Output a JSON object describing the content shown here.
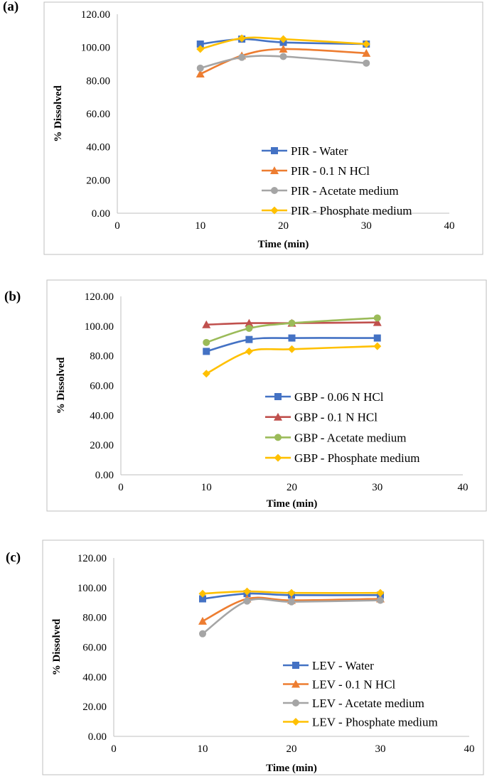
{
  "chart_data": [
    {
      "panel_label": "(a)",
      "type": "line",
      "smooth": true,
      "title": "",
      "xlabel": "Time (min)",
      "ylabel": "% Dissolved",
      "xlim": [
        0,
        40
      ],
      "ylim": [
        0,
        120
      ],
      "x_ticks": [
        "0",
        "10",
        "20",
        "30",
        "40"
      ],
      "y_ticks": [
        "0.00",
        "20.00",
        "40.00",
        "60.00",
        "80.00",
        "100.00",
        "120.00"
      ],
      "grid": false,
      "legend_position": "bottom-right",
      "x": [
        10,
        15,
        20,
        30
      ],
      "series": [
        {
          "name": "PIR - Water",
          "marker": "square",
          "color": "#4472C4",
          "values": [
            102.0,
            105.0,
            103.0,
            102.0
          ]
        },
        {
          "name": "PIR - 0.1 N HCl",
          "marker": "triangle",
          "color": "#ED7D31",
          "values": [
            84.0,
            95.0,
            99.0,
            96.5
          ]
        },
        {
          "name": "PIR - Acetate medium",
          "marker": "circle",
          "color": "#A5A5A5",
          "values": [
            87.5,
            94.0,
            94.5,
            90.5
          ]
        },
        {
          "name": "PIR - Phosphate medium",
          "marker": "diamond",
          "color": "#FFC000",
          "values": [
            99.0,
            105.5,
            105.0,
            102.0
          ]
        }
      ]
    },
    {
      "panel_label": "(b)",
      "type": "line",
      "smooth": true,
      "title": "",
      "xlabel": "Time (min)",
      "ylabel": "% Dissolved",
      "xlim": [
        0,
        40
      ],
      "ylim": [
        0,
        120
      ],
      "x_ticks": [
        "0",
        "10",
        "20",
        "30",
        "40"
      ],
      "y_ticks": [
        "0.00",
        "20.00",
        "40.00",
        "60.00",
        "80.00",
        "100.00",
        "120.00"
      ],
      "grid": false,
      "legend_position": "bottom-right",
      "x": [
        10,
        15,
        20,
        30
      ],
      "series": [
        {
          "name": "GBP - 0.06 N HCl",
          "marker": "square",
          "color": "#4472C4",
          "values": [
            83.0,
            91.0,
            92.0,
            92.0
          ]
        },
        {
          "name": "GBP - 0.1 N HCl",
          "marker": "triangle",
          "color": "#C0504D",
          "values": [
            101.0,
            102.0,
            102.0,
            102.5
          ]
        },
        {
          "name": "GBP - Acetate medium",
          "marker": "circle",
          "color": "#9BBB59",
          "values": [
            89.0,
            98.5,
            102.0,
            105.5
          ]
        },
        {
          "name": "GBP - Phosphate medium",
          "marker": "diamond",
          "color": "#FFC000",
          "values": [
            68.0,
            83.0,
            84.5,
            86.5
          ]
        }
      ]
    },
    {
      "panel_label": "(c)",
      "type": "line",
      "smooth": true,
      "title": "",
      "xlabel": "Time (min)",
      "ylabel": "% Dissolved",
      "xlim": [
        0,
        40
      ],
      "ylim": [
        0,
        120
      ],
      "x_ticks": [
        "0",
        "10",
        "20",
        "30",
        "40"
      ],
      "y_ticks": [
        "0.00",
        "20.00",
        "40.00",
        "60.00",
        "80.00",
        "100.00",
        "120.00"
      ],
      "grid": false,
      "legend_position": "bottom-right",
      "x": [
        10,
        15,
        20,
        30
      ],
      "series": [
        {
          "name": "LEV - Water",
          "marker": "square",
          "color": "#4472C4",
          "values": [
            92.5,
            96.0,
            95.0,
            95.0
          ]
        },
        {
          "name": "LEV - 0.1 N HCl",
          "marker": "triangle",
          "color": "#ED7D31",
          "values": [
            77.5,
            92.5,
            91.5,
            92.5
          ]
        },
        {
          "name": "LEV - Acetate medium",
          "marker": "circle",
          "color": "#A5A5A5",
          "values": [
            69.0,
            91.0,
            90.5,
            91.5
          ]
        },
        {
          "name": "LEV - Phosphate medium",
          "marker": "diamond",
          "color": "#FFC000",
          "values": [
            96.0,
            97.5,
            96.5,
            96.5
          ]
        }
      ]
    }
  ]
}
